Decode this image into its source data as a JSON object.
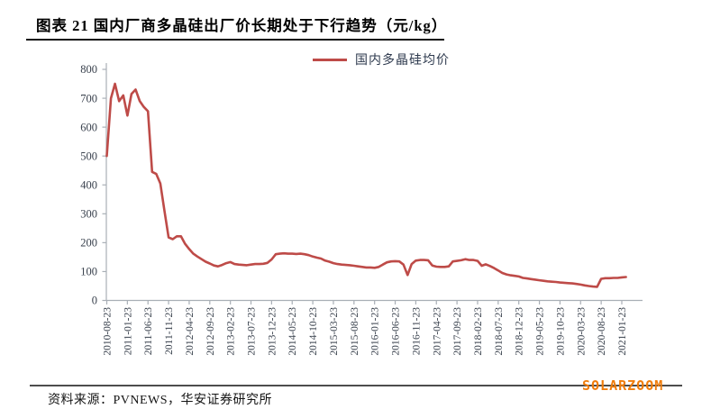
{
  "figure": {
    "title": "图表 21 国内厂商多晶硅出厂价长期处于下行趋势（元/kg）",
    "source": "资料来源：PVNEWS，华安证券研究所",
    "watermark": "SOLARZOOM"
  },
  "legend": {
    "label": "国内多晶硅均价"
  },
  "colors": {
    "line": "#BE4B48",
    "axis": "#A9AFB6",
    "tick_text": "#39414D",
    "title_text": "#000000",
    "watermark": "#F07D0C",
    "rule": "#4D4D4D"
  },
  "chart_data": {
    "type": "line",
    "title": "图表 21 国内厂商多晶硅出厂价长期处于下行趋势（元/kg）",
    "unit": "元/kg",
    "legend_position": "top-center",
    "grid": false,
    "ylim": [
      0,
      800
    ],
    "y_ticks": [
      0,
      100,
      200,
      300,
      400,
      500,
      600,
      700,
      800
    ],
    "x_start_month": "2010-08",
    "x_end_month": "2021-02",
    "x_tick_labels": [
      "2010-08-23",
      "2011-01-23",
      "2011-06-23",
      "2011-11-23",
      "2012-04-23",
      "2012-09-23",
      "2013-02-23",
      "2013-07-23",
      "2013-12-23",
      "2014-05-23",
      "2014-10-23",
      "2015-03-23",
      "2015-08-23",
      "2016-01-23",
      "2016-06-23",
      "2016-11-23",
      "2017-04-23",
      "2017-09-23",
      "2018-02-23",
      "2018-07-23",
      "2018-12-23",
      "2019-05-23",
      "2019-10-23",
      "2020-03-23",
      "2020-08-23",
      "2021-01-23"
    ],
    "series": [
      {
        "name": "国内多晶硅均价",
        "values": [
          500,
          700,
          750,
          690,
          710,
          640,
          715,
          730,
          690,
          670,
          655,
          445,
          438,
          405,
          310,
          218,
          212,
          222,
          222,
          196,
          178,
          162,
          152,
          143,
          134,
          128,
          121,
          118,
          123,
          129,
          133,
          126,
          124,
          123,
          122,
          124,
          126,
          126,
          127,
          130,
          142,
          160,
          162,
          163,
          162,
          162,
          161,
          162,
          160,
          157,
          152,
          148,
          145,
          138,
          134,
          129,
          126,
          124,
          123,
          122,
          120,
          118,
          116,
          114,
          114,
          113,
          116,
          124,
          132,
          135,
          136,
          135,
          124,
          88,
          126,
          138,
          140,
          140,
          139,
          121,
          117,
          116,
          116,
          118,
          135,
          137,
          139,
          143,
          140,
          140,
          137,
          120,
          125,
          119,
          112,
          104,
          95,
          90,
          87,
          85,
          83,
          78,
          76,
          74,
          72,
          70,
          68,
          66,
          65,
          64,
          62,
          61,
          60,
          59,
          57,
          55,
          52,
          50,
          48,
          47,
          75,
          77,
          77,
          78,
          78,
          80,
          81
        ]
      }
    ]
  }
}
